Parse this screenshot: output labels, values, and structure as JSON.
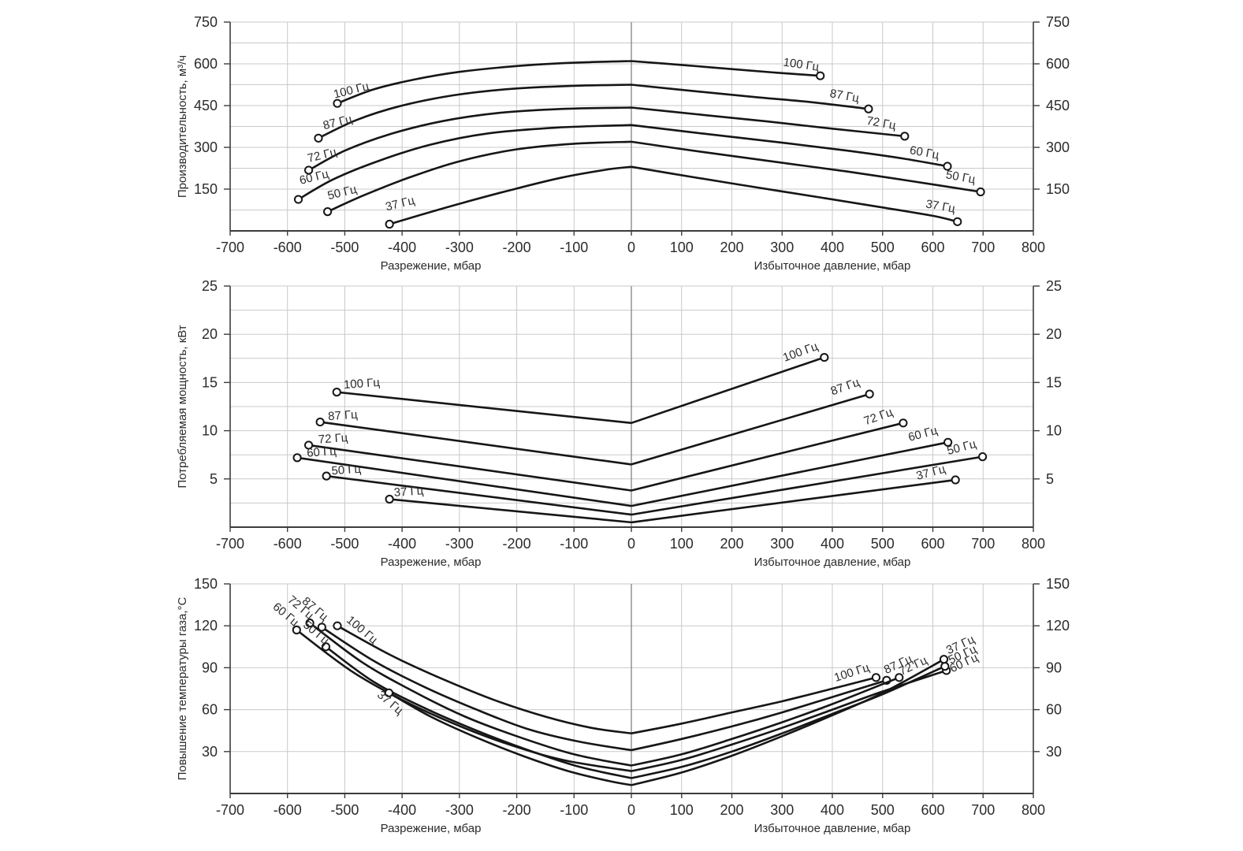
{
  "page": {
    "bg": "#ffffff",
    "curve_color": "#161616",
    "grid_color": "#c9c9c9",
    "zero_line_color": "#8c8c8c",
    "axis_color": "#3c3c3c",
    "text_color": "#2b2b2b",
    "marker_fill": "#ffffff"
  },
  "x_axis": {
    "tick_values": [
      -700,
      -600,
      -500,
      -400,
      -300,
      -200,
      -100,
      0,
      100,
      200,
      300,
      400,
      500,
      600,
      700,
      800
    ],
    "neg_range": [
      -700,
      0
    ],
    "pos_range": [
      0,
      800
    ],
    "caption_left": "Разрежение, мбар",
    "caption_right": "Избыточное давление, мбар"
  },
  "chart_data": [
    {
      "id": "productivity",
      "type": "line",
      "ylabel": "Производительность, м³/ч",
      "ylim": [
        0,
        750
      ],
      "yticks": [
        150,
        300,
        450,
        600,
        750
      ],
      "y_minor_step": 75,
      "grid": true,
      "series": [
        {
          "name": "100 Гц",
          "points": [
            [
              -513,
              458
            ],
            [
              -450,
              508
            ],
            [
              -380,
              543
            ],
            [
              -300,
              571
            ],
            [
              -200,
              592
            ],
            [
              -100,
              604
            ],
            [
              0,
              610
            ],
            [
              100,
              596
            ],
            [
              200,
              581
            ],
            [
              290,
              568
            ],
            [
              376,
              557
            ]
          ],
          "label_start": {
            "x": -487,
            "y": 492,
            "rot": -14
          },
          "label_end": {
            "x": 337,
            "y": 584,
            "rot": 8
          }
        },
        {
          "name": "87 Гц",
          "points": [
            [
              -546,
              333
            ],
            [
              -480,
              398
            ],
            [
              -400,
              450
            ],
            [
              -310,
              487
            ],
            [
              -210,
              510
            ],
            [
              -100,
              521
            ],
            [
              0,
              525
            ],
            [
              120,
              503
            ],
            [
              250,
              480
            ],
            [
              360,
              462
            ],
            [
              472,
              438
            ]
          ],
          "label_start": {
            "x": -511,
            "y": 377,
            "rot": -14
          },
          "label_end": {
            "x": 423,
            "y": 472,
            "rot": 10
          }
        },
        {
          "name": "72 Гц",
          "points": [
            [
              -563,
              218
            ],
            [
              -500,
              288
            ],
            [
              -420,
              348
            ],
            [
              -330,
              394
            ],
            [
              -230,
              424
            ],
            [
              -120,
              438
            ],
            [
              0,
              443
            ],
            [
              130,
              419
            ],
            [
              270,
              393
            ],
            [
              400,
              367
            ],
            [
              544,
              340
            ]
          ],
          "label_start": {
            "x": -538,
            "y": 259,
            "rot": -14
          },
          "label_end": {
            "x": 496,
            "y": 374,
            "rot": 10
          }
        },
        {
          "name": "60 Гц",
          "points": [
            [
              -581,
              113
            ],
            [
              -520,
              185
            ],
            [
              -440,
              252
            ],
            [
              -350,
              310
            ],
            [
              -250,
              350
            ],
            [
              -130,
              371
            ],
            [
              0,
              380
            ],
            [
              140,
              350
            ],
            [
              290,
              319
            ],
            [
              430,
              288
            ],
            [
              540,
              260
            ],
            [
              629,
              232
            ]
          ],
          "label_start": {
            "x": -552,
            "y": 180,
            "rot": -14
          },
          "label_end": {
            "x": 582,
            "y": 268,
            "rot": 10
          }
        },
        {
          "name": "50 Гц",
          "points": [
            [
              -530,
              69
            ],
            [
              -470,
              125
            ],
            [
              -390,
              190
            ],
            [
              -300,
              250
            ],
            [
              -200,
              293
            ],
            [
              -100,
              313
            ],
            [
              0,
              320
            ],
            [
              140,
              284
            ],
            [
              290,
              247
            ],
            [
              430,
              213
            ],
            [
              560,
              178
            ],
            [
              695,
              140
            ]
          ],
          "label_start": {
            "x": -503,
            "y": 125,
            "rot": -14
          },
          "label_end": {
            "x": 654,
            "y": 180,
            "rot": 10
          }
        },
        {
          "name": "37 Гц",
          "points": [
            [
              -422,
              24
            ],
            [
              -360,
              62
            ],
            [
              -290,
              103
            ],
            [
              -210,
              147
            ],
            [
              -120,
              192
            ],
            [
              -40,
              221
            ],
            [
              0,
              230
            ],
            [
              120,
              194
            ],
            [
              250,
              156
            ],
            [
              380,
              119
            ],
            [
              500,
              84
            ],
            [
              600,
              54
            ],
            [
              649,
              33
            ]
          ],
          "label_start": {
            "x": -402,
            "y": 85,
            "rot": -14
          },
          "label_end": {
            "x": 614,
            "y": 75,
            "rot": 10
          }
        }
      ]
    },
    {
      "id": "power",
      "type": "line",
      "ylabel": "Потребляемая мощность, кВт",
      "ylim": [
        0,
        25
      ],
      "yticks": [
        5,
        10,
        15,
        20,
        25
      ],
      "y_minor_step": 2.5,
      "grid": true,
      "series": [
        {
          "name": "100 Гц",
          "points": [
            [
              -514,
              14
            ],
            [
              0,
              10.8
            ],
            [
              384,
              17.6
            ]
          ],
          "label_start": {
            "x": -470,
            "y": 14.5,
            "rot": -4
          },
          "label_end": {
            "x": 339,
            "y": 17.8,
            "rot": -20
          }
        },
        {
          "name": "87 Гц",
          "points": [
            [
              -543,
              10.9
            ],
            [
              0,
              6.5
            ],
            [
              474,
              13.8
            ]
          ],
          "label_start": {
            "x": -503,
            "y": 11.2,
            "rot": -4
          },
          "label_end": {
            "x": 428,
            "y": 14.2,
            "rot": -20
          }
        },
        {
          "name": "72 Гц",
          "points": [
            [
              -563,
              8.5
            ],
            [
              0,
              3.8
            ],
            [
              541,
              10.8
            ]
          ],
          "label_start": {
            "x": -520,
            "y": 8.8,
            "rot": -4
          },
          "label_end": {
            "x": 494,
            "y": 11.1,
            "rot": -20
          }
        },
        {
          "name": "60 Гц",
          "points": [
            [
              -583,
              7.2
            ],
            [
              0,
              2.2
            ],
            [
              630,
              8.8
            ]
          ],
          "label_start": {
            "x": -540,
            "y": 7.4,
            "rot": -4
          },
          "label_end": {
            "x": 582,
            "y": 9.3,
            "rot": -15
          }
        },
        {
          "name": "50 Гц",
          "points": [
            [
              -532,
              5.3
            ],
            [
              0,
              1.3
            ],
            [
              699,
              7.3
            ]
          ],
          "label_start": {
            "x": -497,
            "y": 5.55,
            "rot": -4
          },
          "label_end": {
            "x": 659,
            "y": 7.9,
            "rot": -15
          }
        },
        {
          "name": "37 Гц",
          "points": [
            [
              -422,
              2.9
            ],
            [
              0,
              0.5
            ],
            [
              645,
              4.9
            ]
          ],
          "label_start": {
            "x": -388,
            "y": 3.3,
            "rot": -4
          },
          "label_end": {
            "x": 598,
            "y": 5.3,
            "rot": -15
          }
        }
      ]
    },
    {
      "id": "temperature",
      "type": "line",
      "ylabel": "Повышение температуры газа,°С",
      "ylim": [
        0,
        150
      ],
      "yticks": [
        30,
        60,
        90,
        120,
        150
      ],
      "y_minor_step": 30,
      "grid": true,
      "series": [
        {
          "name": "100 Гц",
          "points": [
            [
              -513,
              120
            ],
            [
              -420,
              99
            ],
            [
              -330,
              82
            ],
            [
              -240,
              67
            ],
            [
              -150,
              55
            ],
            [
              -70,
              47
            ],
            [
              0,
              43
            ],
            [
              100,
              50
            ],
            [
              200,
              58
            ],
            [
              300,
              66
            ],
            [
              400,
              75
            ],
            [
              487,
              83
            ]
          ],
          "label_start": {
            "x": -474,
            "y": 115,
            "rot": 40
          },
          "label_end": {
            "x": 441,
            "y": 84,
            "rot": -18
          }
        },
        {
          "name": "87 Гц",
          "points": [
            [
              -540,
              119
            ],
            [
              -450,
              95
            ],
            [
              -360,
              76
            ],
            [
              -270,
              60
            ],
            [
              -180,
              46
            ],
            [
              -90,
              37
            ],
            [
              0,
              31
            ],
            [
              100,
              39
            ],
            [
              200,
              48
            ],
            [
              300,
              58
            ],
            [
              400,
              69
            ],
            [
              508,
              81
            ]
          ],
          "label_start": {
            "x": -556,
            "y": 130,
            "rot": 40
          },
          "label_end": {
            "x": 534,
            "y": 90,
            "rot": -25
          }
        },
        {
          "name": "72 Гц",
          "points": [
            [
              -561,
              122
            ],
            [
              -470,
              94
            ],
            [
              -380,
              73
            ],
            [
              -290,
              55
            ],
            [
              -200,
              41
            ],
            [
              -100,
              28
            ],
            [
              0,
              20
            ],
            [
              100,
              28
            ],
            [
              200,
              39
            ],
            [
              300,
              51
            ],
            [
              400,
              64
            ],
            [
              533,
              83
            ]
          ],
          "label_start": {
            "x": -581,
            "y": 131,
            "rot": 40
          },
          "label_end": {
            "x": 564,
            "y": 89,
            "rot": -25
          }
        },
        {
          "name": "60 Гц",
          "points": [
            [
              -584,
              117
            ],
            [
              -490,
              88
            ],
            [
              -400,
              67
            ],
            [
              -310,
              50
            ],
            [
              -220,
              36
            ],
            [
              -120,
              24
            ],
            [
              0,
              16
            ],
            [
              100,
              24
            ],
            [
              200,
              35
            ],
            [
              300,
              47
            ],
            [
              400,
              60
            ],
            [
              500,
              73
            ],
            [
              627,
              88
            ]
          ],
          "label_start": {
            "x": -607,
            "y": 126,
            "rot": 40
          },
          "label_end": {
            "x": 665,
            "y": 91,
            "rot": -25
          }
        },
        {
          "name": "50 Гц",
          "points": [
            [
              -533,
              105
            ],
            [
              -450,
              80
            ],
            [
              -360,
              61
            ],
            [
              -270,
              45
            ],
            [
              -180,
              31
            ],
            [
              -90,
              19
            ],
            [
              0,
              11
            ],
            [
              100,
              19
            ],
            [
              200,
              30
            ],
            [
              300,
              43
            ],
            [
              400,
              57
            ],
            [
              500,
              71
            ],
            [
              624,
              91
            ]
          ],
          "label_start": {
            "x": -554,
            "y": 113,
            "rot": 40
          },
          "label_end": {
            "x": 662,
            "y": 97,
            "rot": -25
          }
        },
        {
          "name": "37 Гц",
          "points": [
            [
              -423,
              72
            ],
            [
              -350,
              55
            ],
            [
              -270,
              40
            ],
            [
              -190,
              27
            ],
            [
              -110,
              16
            ],
            [
              -40,
              9
            ],
            [
              0,
              6
            ],
            [
              100,
              15
            ],
            [
              200,
              27
            ],
            [
              300,
              41
            ],
            [
              400,
              56
            ],
            [
              500,
              72
            ],
            [
              622,
              96
            ]
          ],
          "label_start": {
            "x": -425,
            "y": 63,
            "rot": 40
          },
          "label_end": {
            "x": 658,
            "y": 104,
            "rot": -25
          }
        }
      ]
    }
  ]
}
